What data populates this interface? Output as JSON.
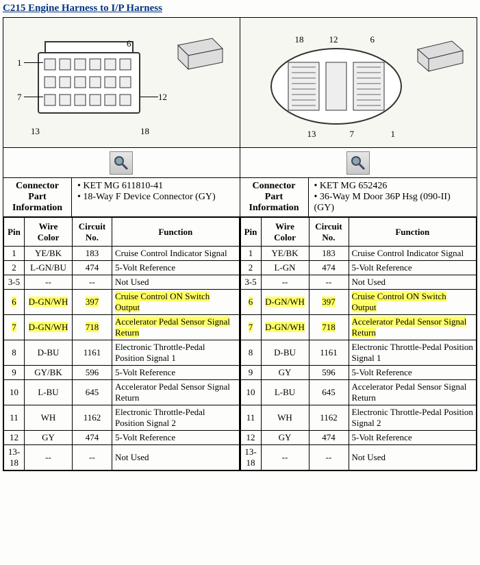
{
  "title": "C215 Engine Harness to I/P Harness",
  "left": {
    "diagram_labels": [
      "1",
      "6",
      "7",
      "12",
      "13",
      "18"
    ],
    "info_label": "Connector Part Information",
    "info_items": [
      "KET MG 611810-41",
      "18-Way F Device Connector (GY)"
    ],
    "columns": [
      "Pin",
      "Wire Color",
      "Circuit No.",
      "Function"
    ],
    "rows": [
      {
        "pin": "1",
        "wire": "YE/BK",
        "circ": "183",
        "func": "Cruise Control Indicator Signal",
        "hl": false
      },
      {
        "pin": "2",
        "wire": "L-GN/BU",
        "circ": "474",
        "func": "5-Volt Reference",
        "hl": false
      },
      {
        "pin": "3-5",
        "wire": "--",
        "circ": "--",
        "func": "Not Used",
        "hl": false
      },
      {
        "pin": "6",
        "wire": "D-GN/WH",
        "circ": "397",
        "func": "Cruise Control ON Switch Output",
        "hl": true
      },
      {
        "pin": "7",
        "wire": "D-GN/WH",
        "circ": "718",
        "func": "Accelerator Pedal Sensor Signal Return",
        "hl": true
      },
      {
        "pin": "8",
        "wire": "D-BU",
        "circ": "1161",
        "func": "Electronic Throttle-Pedal Position Signal 1",
        "hl": false
      },
      {
        "pin": "9",
        "wire": "GY/BK",
        "circ": "596",
        "func": "5-Volt Reference",
        "hl": false
      },
      {
        "pin": "10",
        "wire": "L-BU",
        "circ": "645",
        "func": "Accelerator Pedal Sensor Signal Return",
        "hl": false
      },
      {
        "pin": "11",
        "wire": "WH",
        "circ": "1162",
        "func": "Electronic Throttle-Pedal Position Signal 2",
        "hl": false
      },
      {
        "pin": "12",
        "wire": "GY",
        "circ": "474",
        "func": "5-Volt Reference",
        "hl": false
      },
      {
        "pin": "13-18",
        "wire": "--",
        "circ": "--",
        "func": "Not Used",
        "hl": false
      }
    ]
  },
  "right": {
    "diagram_labels": [
      "18",
      "12",
      "6",
      "13",
      "7",
      "1"
    ],
    "info_label": "Connector Part Information",
    "info_items": [
      "KET MG 652426",
      "36-Way M Door 36P Hsg (090-II) (GY)"
    ],
    "columns": [
      "Pin",
      "Wire Color",
      "Circuit No.",
      "Function"
    ],
    "rows": [
      {
        "pin": "1",
        "wire": "YE/BK",
        "circ": "183",
        "func": "Cruise Control Indicator Signal",
        "hl": false
      },
      {
        "pin": "2",
        "wire": "L-GN",
        "circ": "474",
        "func": "5-Volt Reference",
        "hl": false
      },
      {
        "pin": "3-5",
        "wire": "--",
        "circ": "--",
        "func": "Not Used",
        "hl": false
      },
      {
        "pin": "6",
        "wire": "D-GN/WH",
        "circ": "397",
        "func": "Cruise Control ON Switch Output",
        "hl": true
      },
      {
        "pin": "7",
        "wire": "D-GN/WH",
        "circ": "718",
        "func": "Accelerator Pedal Sensor Signal Return",
        "hl": true
      },
      {
        "pin": "8",
        "wire": "D-BU",
        "circ": "1161",
        "func": "Electronic Throttle-Pedal Position Signal 1",
        "hl": false
      },
      {
        "pin": "9",
        "wire": "GY",
        "circ": "596",
        "func": "5-Volt Reference",
        "hl": false
      },
      {
        "pin": "10",
        "wire": "L-BU",
        "circ": "645",
        "func": "Accelerator Pedal Sensor Signal Return",
        "hl": false
      },
      {
        "pin": "11",
        "wire": "WH",
        "circ": "1162",
        "func": "Electronic Throttle-Pedal Position Signal 2",
        "hl": false
      },
      {
        "pin": "12",
        "wire": "GY",
        "circ": "474",
        "func": "5-Volt Reference",
        "hl": false
      },
      {
        "pin": "13-18",
        "wire": "--",
        "circ": "--",
        "func": "Not Used",
        "hl": false
      }
    ]
  },
  "colors": {
    "highlight": "#ffff66",
    "title_color": "#053582",
    "border": "#000000",
    "background": "#fdfdfb"
  }
}
